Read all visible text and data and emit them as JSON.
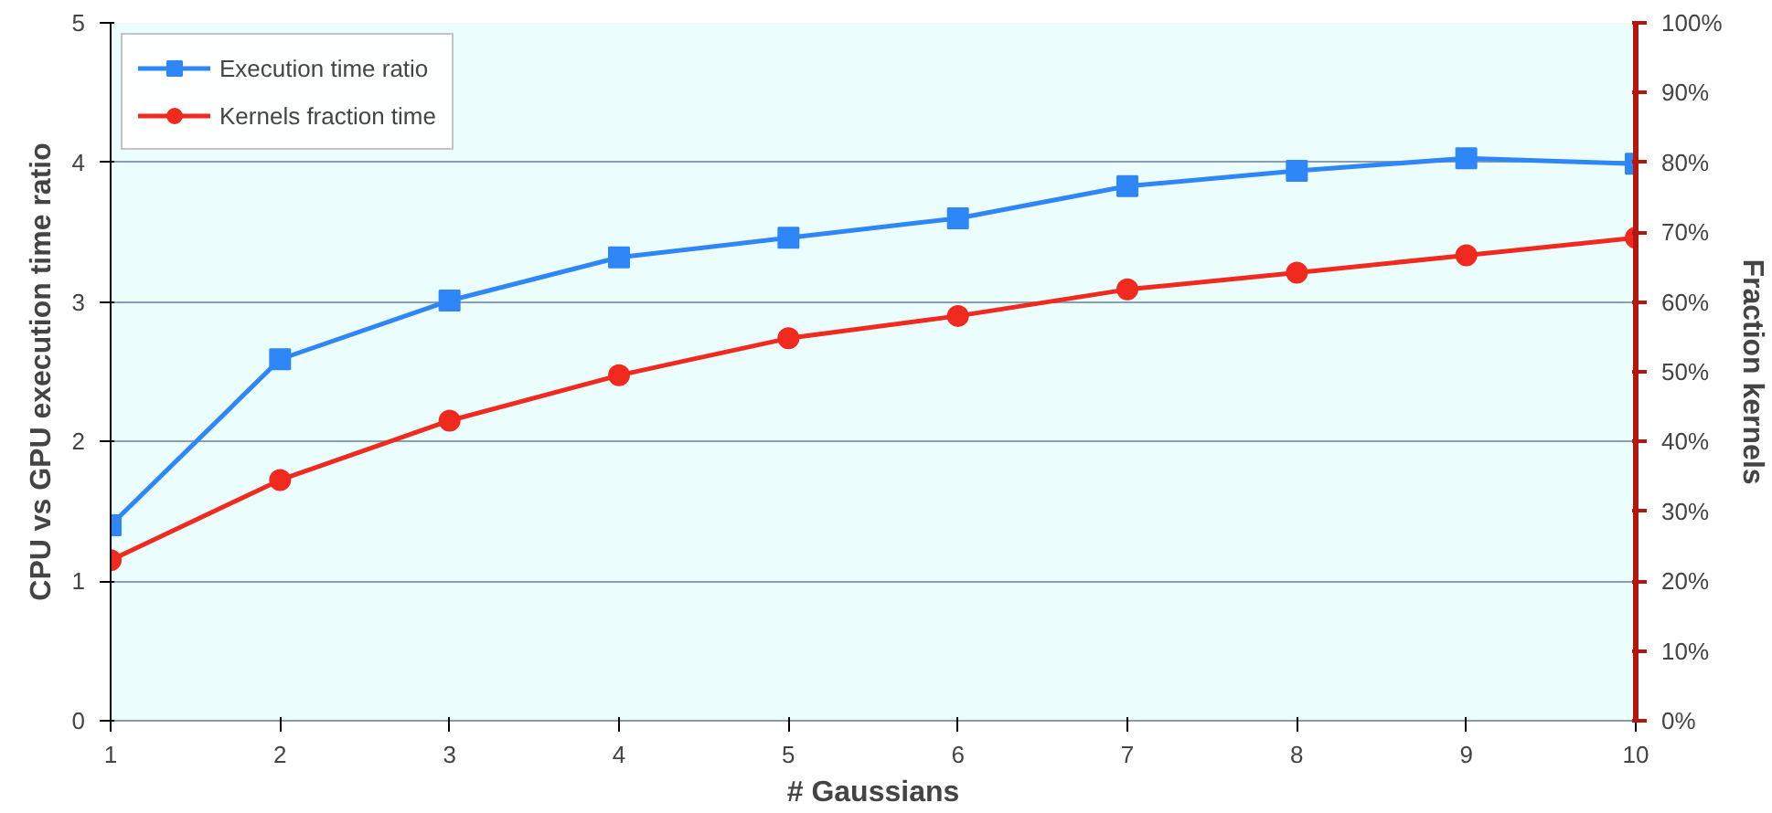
{
  "chart_data": {
    "type": "line",
    "xlabel": "# Gaussians",
    "ylabel": "CPU vs GPU execution time ratio",
    "y2label": "Fraction kernels",
    "x": [
      1,
      2,
      3,
      4,
      5,
      6,
      7,
      8,
      9,
      10
    ],
    "series": [
      {
        "name": "Execution time ratio",
        "color": "#2f86f6",
        "marker": "square",
        "values": [
          1.4,
          2.59,
          3.01,
          3.32,
          3.46,
          3.6,
          3.83,
          3.94,
          4.03,
          3.99
        ]
      },
      {
        "name": "Kernels fraction time",
        "color": "#f02a1e",
        "marker": "circle",
        "axis": "y2",
        "values": [
          23,
          34.5,
          43,
          49.5,
          54.8,
          58,
          61.8,
          64.2,
          66.7,
          69.2
        ]
      }
    ],
    "xlim": [
      1,
      10
    ],
    "xticks": [
      1,
      2,
      3,
      4,
      5,
      6,
      7,
      8,
      9,
      10
    ],
    "ylim": [
      0,
      5
    ],
    "yticks": [
      0,
      1,
      2,
      3,
      4,
      5
    ],
    "y2lim": [
      0,
      100
    ],
    "y2ticks": [
      {
        "value": 0,
        "label": "0%"
      },
      {
        "value": 10,
        "label": "10%"
      },
      {
        "value": 20,
        "label": "20%"
      },
      {
        "value": 30,
        "label": "30%"
      },
      {
        "value": 40,
        "label": "40%"
      },
      {
        "value": 50,
        "label": "50%"
      },
      {
        "value": 60,
        "label": "60%"
      },
      {
        "value": 70,
        "label": "70%"
      },
      {
        "value": 80,
        "label": "80%"
      },
      {
        "value": 90,
        "label": "90%"
      },
      {
        "value": 100,
        "label": "100%"
      }
    ],
    "grid": "y",
    "legend": "top left",
    "line_style": "solid"
  }
}
